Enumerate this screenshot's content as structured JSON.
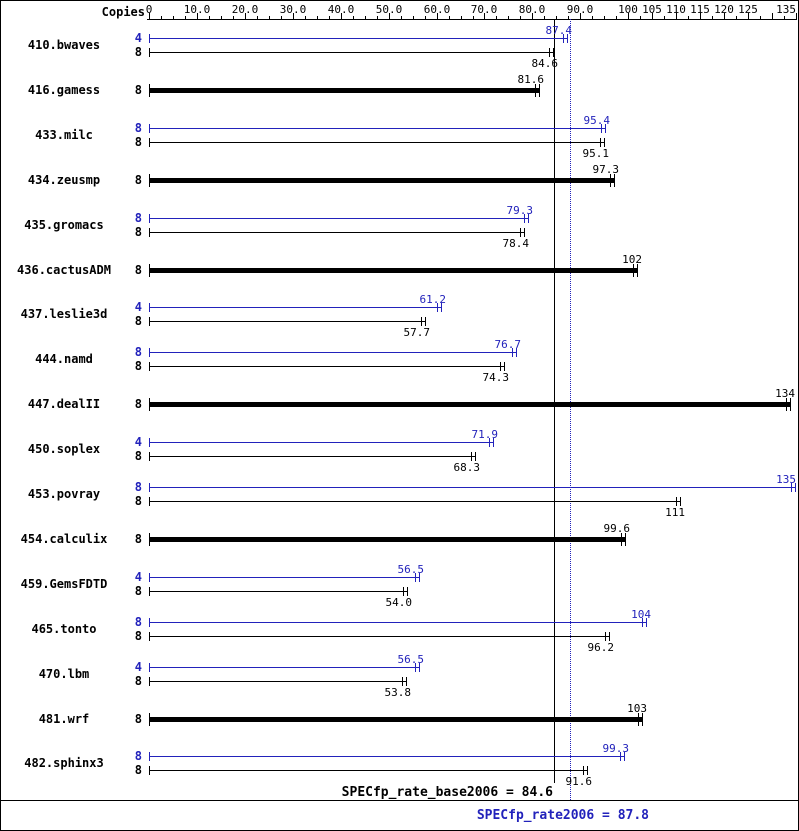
{
  "header": {
    "copies_label": "Copies"
  },
  "footer": {
    "base_label": "SPECfp_rate_base2006 = 84.6",
    "peak_label": "SPECfp_rate2006 = 87.8"
  },
  "chart_data": {
    "type": "bar",
    "orientation": "horizontal",
    "title": "",
    "xlabel": "",
    "ylabel": "Copies",
    "xlim": [
      0,
      135
    ],
    "grid": false,
    "minor_tick_step": 2.5,
    "colors": {
      "peak": "#2222bb",
      "base": "#000000"
    },
    "axis_ticks": [
      {
        "value": 0,
        "label": "0"
      },
      {
        "value": 10,
        "label": "10.0"
      },
      {
        "value": 20,
        "label": "20.0"
      },
      {
        "value": 30,
        "label": "30.0"
      },
      {
        "value": 40,
        "label": "40.0"
      },
      {
        "value": 50,
        "label": "50.0"
      },
      {
        "value": 60,
        "label": "60.0"
      },
      {
        "value": 70,
        "label": "70.0"
      },
      {
        "value": 80,
        "label": "80.0"
      },
      {
        "value": 90,
        "label": "90.0"
      },
      {
        "value": 100,
        "label": "100"
      },
      {
        "value": 105,
        "label": "105"
      },
      {
        "value": 110,
        "label": "110"
      },
      {
        "value": 115,
        "label": "115"
      },
      {
        "value": 120,
        "label": "120"
      },
      {
        "value": 125,
        "label": "125"
      },
      {
        "value": 130,
        "label": ""
      },
      {
        "value": 135,
        "label": "135"
      }
    ],
    "reference_lines": {
      "base": {
        "value": 84.6,
        "color": "#000000",
        "style": "solid"
      },
      "peak": {
        "value": 87.8,
        "color": "#2222bb",
        "style": "dotted"
      }
    },
    "benchmarks": [
      {
        "name": "410.bwaves",
        "bars": [
          {
            "type": "peak",
            "copies": "4",
            "value": 87.4,
            "label": "87.4"
          },
          {
            "type": "base",
            "copies": "8",
            "value": 84.6,
            "label": "84.6"
          }
        ]
      },
      {
        "name": "416.gamess",
        "bars": [
          {
            "type": "merged",
            "copies": "8",
            "value": 81.6,
            "label": "81.6"
          }
        ]
      },
      {
        "name": "433.milc",
        "bars": [
          {
            "type": "peak",
            "copies": "8",
            "value": 95.4,
            "label": "95.4"
          },
          {
            "type": "base",
            "copies": "8",
            "value": 95.1,
            "label": "95.1"
          }
        ]
      },
      {
        "name": "434.zeusmp",
        "bars": [
          {
            "type": "merged",
            "copies": "8",
            "value": 97.3,
            "label": "97.3"
          }
        ]
      },
      {
        "name": "435.gromacs",
        "bars": [
          {
            "type": "peak",
            "copies": "8",
            "value": 79.3,
            "label": "79.3"
          },
          {
            "type": "base",
            "copies": "8",
            "value": 78.4,
            "label": "78.4"
          }
        ]
      },
      {
        "name": "436.cactusADM",
        "bars": [
          {
            "type": "merged",
            "copies": "8",
            "value": 102,
            "label": "102"
          }
        ]
      },
      {
        "name": "437.leslie3d",
        "bars": [
          {
            "type": "peak",
            "copies": "4",
            "value": 61.2,
            "label": "61.2"
          },
          {
            "type": "base",
            "copies": "8",
            "value": 57.7,
            "label": "57.7"
          }
        ]
      },
      {
        "name": "444.namd",
        "bars": [
          {
            "type": "peak",
            "copies": "8",
            "value": 76.7,
            "label": "76.7"
          },
          {
            "type": "base",
            "copies": "8",
            "value": 74.3,
            "label": "74.3"
          }
        ]
      },
      {
        "name": "447.dealII",
        "bars": [
          {
            "type": "merged",
            "copies": "8",
            "value": 134,
            "label": "134"
          }
        ]
      },
      {
        "name": "450.soplex",
        "bars": [
          {
            "type": "peak",
            "copies": "4",
            "value": 71.9,
            "label": "71.9"
          },
          {
            "type": "base",
            "copies": "8",
            "value": 68.3,
            "label": "68.3"
          }
        ]
      },
      {
        "name": "453.povray",
        "bars": [
          {
            "type": "peak",
            "copies": "8",
            "value": 135,
            "label": "135"
          },
          {
            "type": "base",
            "copies": "8",
            "value": 111,
            "label": "111"
          }
        ]
      },
      {
        "name": "454.calculix",
        "bars": [
          {
            "type": "merged",
            "copies": "8",
            "value": 99.6,
            "label": "99.6"
          }
        ]
      },
      {
        "name": "459.GemsFDTD",
        "bars": [
          {
            "type": "peak",
            "copies": "4",
            "value": 56.5,
            "label": "56.5"
          },
          {
            "type": "base",
            "copies": "8",
            "value": 54.0,
            "label": "54.0"
          }
        ]
      },
      {
        "name": "465.tonto",
        "bars": [
          {
            "type": "peak",
            "copies": "8",
            "value": 104,
            "label": "104"
          },
          {
            "type": "base",
            "copies": "8",
            "value": 96.2,
            "label": "96.2"
          }
        ]
      },
      {
        "name": "470.lbm",
        "bars": [
          {
            "type": "peak",
            "copies": "4",
            "value": 56.5,
            "label": "56.5"
          },
          {
            "type": "base",
            "copies": "8",
            "value": 53.8,
            "label": "53.8"
          }
        ]
      },
      {
        "name": "481.wrf",
        "bars": [
          {
            "type": "merged",
            "copies": "8",
            "value": 103,
            "label": "103"
          }
        ]
      },
      {
        "name": "482.sphinx3",
        "bars": [
          {
            "type": "peak",
            "copies": "8",
            "value": 99.3,
            "label": "99.3"
          },
          {
            "type": "base",
            "copies": "8",
            "value": 91.6,
            "label": "91.6"
          }
        ]
      }
    ]
  }
}
